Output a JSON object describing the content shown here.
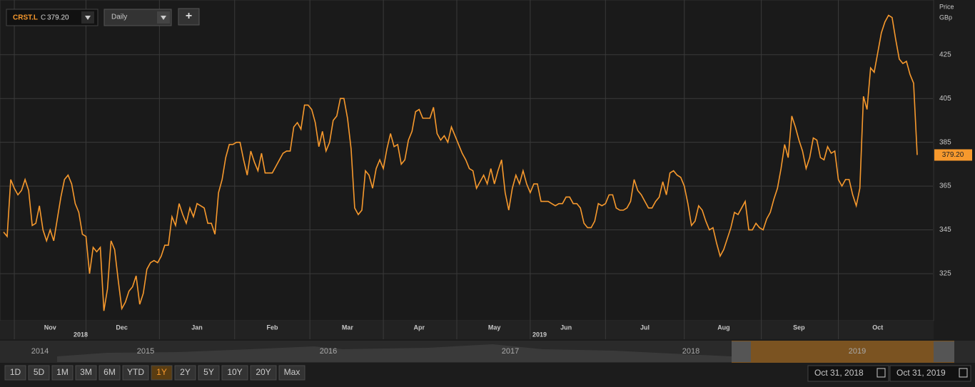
{
  "toolbar": {
    "symbol": "CRST.L",
    "close_prefix": "C",
    "close_value": "379.20",
    "interval": "Daily",
    "add_button": "+"
  },
  "chart_data": {
    "type": "line",
    "axis_title_1": "Price",
    "axis_title_2": "GBp",
    "year_labels": [
      "2018",
      "2019"
    ],
    "categories": [
      null,
      null,
      null,
      null,
      null,
      null,
      null,
      null,
      null,
      null,
      null,
      null,
      null,
      "Nov",
      null,
      null,
      null,
      null,
      null,
      null,
      null,
      null,
      null,
      null,
      null,
      null,
      null,
      null,
      null,
      null,
      null,
      null,
      null,
      "Dec",
      null,
      null,
      null,
      null,
      null,
      null,
      null,
      null,
      null,
      null,
      null,
      null,
      null,
      null,
      null,
      null,
      null,
      null,
      null,
      null,
      "Jan",
      null,
      null,
      null,
      null,
      null,
      null,
      null,
      null,
      null,
      null,
      null,
      null,
      null,
      null,
      null,
      null,
      null,
      null,
      null,
      null,
      "Feb",
      null,
      null,
      null,
      null,
      null,
      null,
      null,
      null,
      null,
      null,
      null,
      null,
      null,
      null,
      null,
      null,
      null,
      null,
      null,
      null,
      "Mar",
      null,
      null,
      null,
      null,
      null,
      null,
      null,
      null,
      null,
      null,
      null,
      null,
      null,
      null,
      null,
      null,
      null,
      null,
      null,
      "Apr",
      null,
      null,
      null,
      null,
      null,
      null,
      null,
      null,
      null,
      null,
      null,
      null,
      null,
      null,
      null,
      null,
      null,
      null,
      null,
      null,
      "May",
      null,
      null,
      null,
      null,
      null,
      null,
      null,
      null,
      null,
      null,
      null,
      null,
      null,
      null,
      null,
      null,
      null,
      null,
      null,
      "Jun",
      null,
      null,
      null,
      null,
      null,
      null,
      null,
      null,
      null,
      null,
      null,
      null,
      null,
      null,
      null,
      null,
      null,
      null,
      null,
      null,
      null,
      "Jul",
      null,
      null,
      null,
      null,
      null,
      null,
      null,
      null,
      null,
      null,
      null,
      null,
      null,
      null,
      null,
      null,
      null,
      null,
      null,
      null,
      null,
      "Aug",
      null,
      null,
      null,
      null,
      null,
      null,
      null,
      null,
      null,
      null,
      null,
      null,
      null,
      null,
      null,
      null,
      null,
      null,
      null,
      null,
      "Sep",
      null,
      null,
      null,
      null,
      null,
      null,
      null,
      null,
      null,
      null,
      null,
      null,
      null,
      null,
      null,
      null,
      null,
      null,
      null,
      null,
      null,
      "Oct",
      null,
      null,
      null,
      null,
      null,
      null,
      null,
      null,
      null,
      null,
      null
    ],
    "series": [
      {
        "name": "CRST.L",
        "color": "#f7992d",
        "values": [
          344,
          342,
          368,
          364,
          361,
          363,
          368,
          363,
          347,
          348,
          356,
          345,
          340,
          345,
          340,
          350,
          360,
          368,
          370,
          366,
          357,
          353,
          343,
          342,
          325,
          337,
          335,
          337,
          308,
          318,
          340,
          336,
          322,
          309,
          312,
          317,
          319,
          324,
          311,
          316,
          327,
          330,
          331,
          330,
          333,
          338,
          338,
          351,
          347,
          357,
          352,
          348,
          355,
          351,
          357,
          356,
          355,
          348,
          348,
          343,
          362,
          368,
          378,
          384,
          384,
          385,
          385,
          377,
          370,
          381,
          376,
          372,
          380,
          371,
          371,
          371,
          374,
          377,
          380,
          381,
          381,
          392,
          394,
          391,
          402,
          402,
          400,
          394,
          383,
          390,
          381,
          385,
          395,
          397,
          405,
          405,
          396,
          382,
          355,
          352,
          354,
          372,
          370,
          364,
          373,
          377,
          373,
          382,
          389,
          383,
          384,
          375,
          377,
          386,
          390,
          399,
          400,
          396,
          396,
          396,
          401,
          389,
          386,
          388,
          385,
          392,
          388,
          384,
          380,
          377,
          373,
          372,
          364,
          367,
          370,
          366,
          373,
          366,
          372,
          377,
          362,
          354,
          364,
          370,
          366,
          372,
          366,
          362,
          366,
          366,
          358,
          358,
          358,
          357,
          356,
          357,
          357,
          360,
          360,
          357,
          357,
          355,
          348,
          346,
          346,
          349,
          357,
          356,
          357,
          361,
          361,
          355,
          354,
          354,
          355,
          358,
          368,
          363,
          361,
          358,
          355,
          355,
          358,
          360,
          367,
          361,
          371,
          372,
          370,
          369,
          365,
          357,
          347,
          349,
          356,
          354,
          349,
          345,
          346,
          339,
          333,
          336,
          341,
          346,
          353,
          352,
          355,
          358,
          345,
          345,
          348,
          346,
          345,
          350,
          353,
          359,
          364,
          373,
          384,
          378,
          397,
          392,
          386,
          381,
          373,
          378,
          387,
          386,
          378,
          377,
          383,
          380,
          381,
          368,
          365,
          368,
          368,
          361,
          356,
          364,
          406,
          400,
          419,
          417,
          426,
          435,
          440,
          443,
          442,
          432,
          423,
          421,
          422,
          416,
          412,
          379.2
        ]
      }
    ],
    "last_value_label": "379.20",
    "ylim": [
      303.5,
      450
    ],
    "yticks": [
      325,
      345,
      365,
      385,
      405,
      425
    ],
    "grid": true
  },
  "navigator": {
    "years": [
      "2014",
      "2015",
      "2016",
      "2017",
      "2018",
      "2019"
    ]
  },
  "range_buttons": [
    "1D",
    "5D",
    "1M",
    "3M",
    "6M",
    "YTD",
    "1Y",
    "2Y",
    "5Y",
    "10Y",
    "20Y",
    "Max"
  ],
  "selected_range": "1Y",
  "date_range": [
    "Oct 31, 2018",
    "Oct 31, 2019"
  ]
}
